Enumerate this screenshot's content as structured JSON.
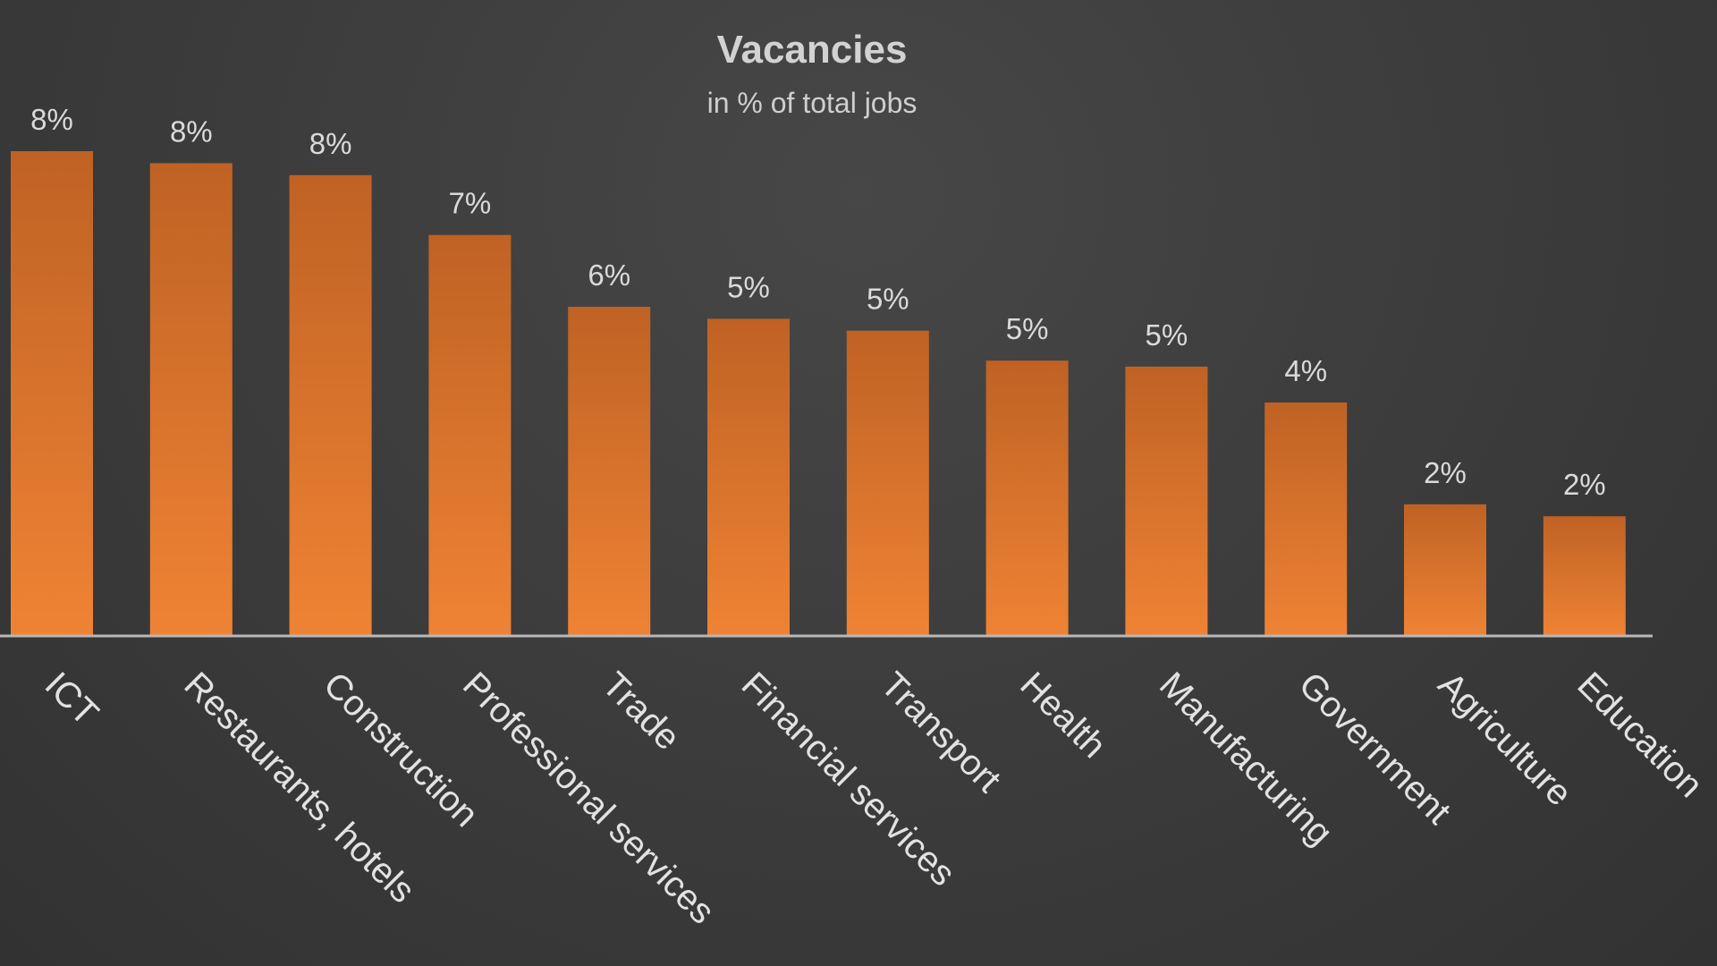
{
  "chart_data": {
    "type": "bar",
    "title": "Vacancies",
    "subtitle": "in % of total jobs",
    "categories": [
      "ICT",
      "Restaurants, hotels",
      "Construction",
      "Professional services",
      "Trade",
      "Financial services",
      "Transport",
      "Health",
      "Manufacturing",
      "Government",
      "Agriculture",
      "Education"
    ],
    "values": [
      8.1,
      7.9,
      7.7,
      6.7,
      5.5,
      5.3,
      5.1,
      4.6,
      4.5,
      3.9,
      2.2,
      2.0
    ],
    "data_labels": [
      "8%",
      "8%",
      "8%",
      "7%",
      "6%",
      "5%",
      "5%",
      "5%",
      "5%",
      "4%",
      "2%",
      "2%"
    ],
    "xlabel": "",
    "ylabel": "",
    "ylim": [
      0,
      8.1
    ],
    "grid": false,
    "legend": "none",
    "colors": {
      "bar_top": "#bf6224",
      "bar_bottom": "#ef8334",
      "axis": "#b8b8b8",
      "background": "#3a3a3a"
    }
  }
}
